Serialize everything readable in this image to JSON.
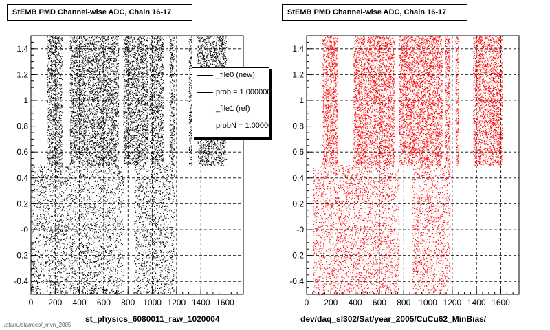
{
  "footer": "/star/u/starreco/_mvn_2005",
  "chart_data": [
    {
      "type": "scatter",
      "title": "StEMB PMD Channel-wise ADC, Chain 16-17",
      "xlabel": "st_physics_6080011_raw_1020004",
      "ylabel": "",
      "xlim": [
        0,
        1750
      ],
      "ylim": [
        -0.5,
        1.5
      ],
      "xticks": [
        "0",
        "200",
        "400",
        "600",
        "800",
        "1000",
        "1200",
        "1400",
        "1600"
      ],
      "yticks": [
        "-0.4",
        "-0.2",
        "-0",
        "0.2",
        "0.4",
        "0.6",
        "0.8",
        "1",
        "1.2",
        "1.4"
      ],
      "grid": true,
      "color": "#000000",
      "series": [
        {
          "name": "_file0 (new)",
          "color": "#000000"
        }
      ],
      "legend": {
        "placement": "top-right",
        "entries": [
          {
            "label": "_file0 (new)",
            "color": "#000000"
          },
          {
            "label": "prob = 1.000000",
            "color": "#000000"
          },
          {
            "label": "_file1 (ref)",
            "color": "#ff0000"
          },
          {
            "label": "probN = 1.000000",
            "color": "#ff0000"
          }
        ]
      },
      "high_bands": [
        [
          130,
          255
        ],
        [
          320,
          720
        ],
        [
          760,
          965
        ],
        [
          975,
          1090
        ],
        [
          1140,
          1180
        ],
        [
          1300,
          1325
        ],
        [
          1370,
          1610
        ]
      ],
      "low_bands": [
        [
          0,
          760
        ],
        [
          850,
          1180
        ]
      ]
    },
    {
      "type": "scatter",
      "title": "StEMB PMD Channel-wise ADC, Chain 16-17",
      "xlabel": "dev/daq_sl302/Sat/year_2005/CuCu62_MinBias/",
      "ylabel": "",
      "xlim": [
        0,
        1750
      ],
      "ylim": [
        -0.5,
        1.5
      ],
      "xticks": [
        "0",
        "200",
        "400",
        "600",
        "800",
        "1000",
        "1200",
        "1400",
        "1600"
      ],
      "yticks": [
        "-0.4",
        "-0.2",
        "-0",
        "0.2",
        "0.4",
        "0.6",
        "0.8",
        "1",
        "1.2",
        "1.4"
      ],
      "grid": true,
      "color": "#ff0000",
      "series": [
        {
          "name": "_file1 (ref)",
          "color": "#ff0000"
        }
      ],
      "high_bands": [
        [
          130,
          255
        ],
        [
          385,
          720
        ],
        [
          760,
          1115
        ],
        [
          1140,
          1180
        ],
        [
          1225,
          1250
        ],
        [
          1370,
          1610
        ]
      ],
      "low_bands": [
        [
          50,
          760
        ],
        [
          870,
          1180
        ]
      ]
    }
  ]
}
